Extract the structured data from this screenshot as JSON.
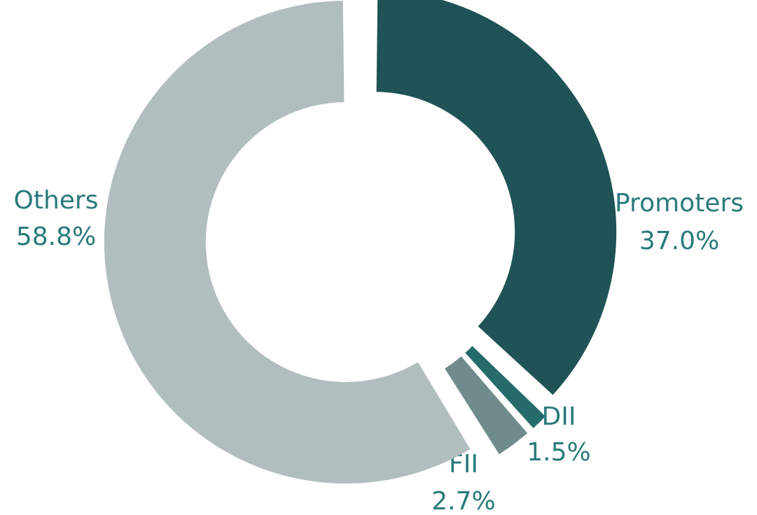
{
  "chart_data": {
    "type": "donut",
    "categories": [
      "Promoters",
      "DII",
      "FII",
      "Others"
    ],
    "values": [
      37.0,
      1.5,
      2.7,
      58.8
    ],
    "value_labels": [
      "37.0%",
      "1.5%",
      "2.7%",
      "58.8%"
    ],
    "colors": [
      "#1f5355",
      "#266b6b",
      "#6f8b8b",
      "#b2bdbe"
    ]
  }
}
